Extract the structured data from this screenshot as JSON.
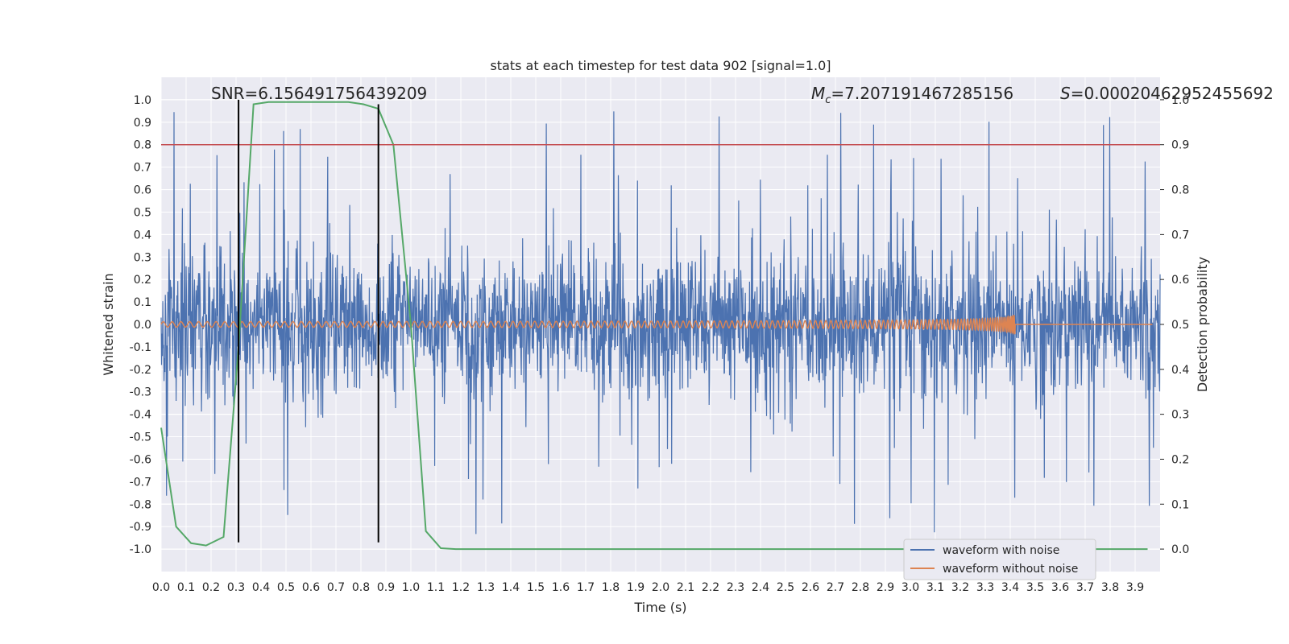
{
  "chart_data": {
    "type": "line",
    "title": "stats at each timestep for test data 902 [signal=1.0]",
    "xlabel": "Time (s)",
    "ylabel": "Whitened strain",
    "y2label": "Detection probability",
    "xlim": [
      0.0,
      4.0
    ],
    "ylim": [
      -1.1,
      1.1
    ],
    "y2lim": [
      -0.05,
      1.05
    ],
    "xticks": [
      "0.0",
      "0.1",
      "0.2",
      "0.3",
      "0.4",
      "0.5",
      "0.6",
      "0.7",
      "0.8",
      "0.9",
      "1.0",
      "1.1",
      "1.2",
      "1.3",
      "1.4",
      "1.5",
      "1.6",
      "1.7",
      "1.8",
      "1.9",
      "2.0",
      "2.1",
      "2.2",
      "2.3",
      "2.4",
      "2.5",
      "2.6",
      "2.7",
      "2.8",
      "2.9",
      "3.0",
      "3.1",
      "3.2",
      "3.3",
      "3.4",
      "3.5",
      "3.6",
      "3.7",
      "3.8",
      "3.9"
    ],
    "yticks": [
      "-1.0",
      "-0.9",
      "-0.8",
      "-0.7",
      "-0.6",
      "-0.5",
      "-0.4",
      "-0.3",
      "-0.2",
      "-0.1",
      "0.0",
      "0.1",
      "0.2",
      "0.3",
      "0.4",
      "0.5",
      "0.6",
      "0.7",
      "0.8",
      "0.9",
      "1.0"
    ],
    "y2ticks": [
      "0.0",
      "0.1",
      "0.2",
      "0.3",
      "0.4",
      "0.5",
      "0.6",
      "0.7",
      "0.8",
      "0.9",
      "1.0"
    ],
    "grid": true,
    "annotations": {
      "snr": "SNR=6.156491756439209",
      "mc_symbol": "M",
      "mc_sub": "c",
      "mc_value": "=7.207191467285156",
      "s_symbol": "S",
      "s_value": "=0.00020462952455692"
    },
    "threshold": {
      "axis": "y2",
      "value": 0.9,
      "color": "#c44e52"
    },
    "vlines": [
      {
        "x": 0.31,
        "ymin": -0.97,
        "ymax": 1.0,
        "color": "#000000"
      },
      {
        "x": 0.87,
        "ymin": -0.97,
        "ymax": 0.98,
        "color": "#000000"
      }
    ],
    "series": [
      {
        "name": "waveform with noise",
        "color": "#4c72b0",
        "axis": "y",
        "description_values": {
          "typical_amplitude": 0.3,
          "peak_max": 1.0,
          "peak_min": -1.0,
          "duration_s": 4.0
        }
      },
      {
        "name": "waveform without noise",
        "color": "#dd8452",
        "axis": "y",
        "chirp": {
          "start_amplitude": 0.012,
          "peak_amplitude": 0.14,
          "start_freq_hz": 28,
          "merger_time_s": 3.42
        }
      },
      {
        "name": "",
        "color": "#55a868",
        "axis": "y2",
        "x": [
          0.0,
          0.06,
          0.12,
          0.18,
          0.25,
          0.31,
          0.37,
          0.43,
          0.5,
          0.56,
          0.62,
          0.68,
          0.75,
          0.81,
          0.87,
          0.93,
          1.0,
          1.06,
          1.12,
          1.18,
          1.25,
          1.5,
          2.0,
          2.5,
          3.0,
          3.5,
          3.95
        ],
        "values": [
          0.27,
          0.05,
          0.013,
          0.008,
          0.027,
          0.45,
          0.99,
          0.995,
          0.995,
          0.995,
          0.995,
          0.995,
          0.995,
          0.99,
          0.98,
          0.9,
          0.5,
          0.04,
          0.002,
          0.0,
          0.0,
          0.0,
          0.0,
          0.0,
          0.0,
          0.0,
          0.0
        ]
      }
    ],
    "legend": {
      "placement": "lower-right",
      "entries": [
        "waveform with noise",
        "waveform without noise"
      ]
    },
    "colors": {
      "plot_bg": "#eaeaf2",
      "grid": "#ffffff"
    }
  }
}
